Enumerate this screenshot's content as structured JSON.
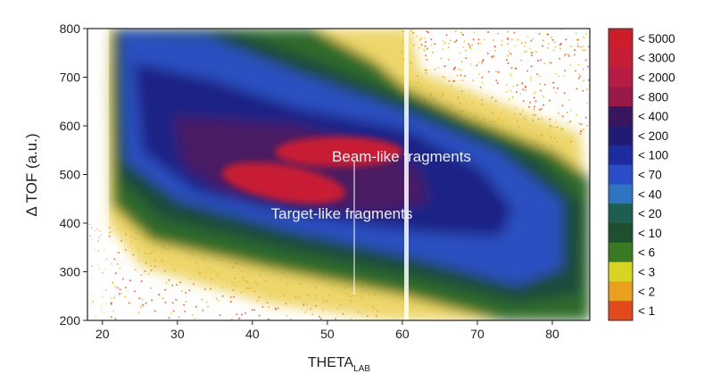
{
  "chart_data": {
    "type": "heatmap",
    "title": "",
    "xlabel": "THETA",
    "xlabel_sub": "LAB",
    "ylabel": "Δ TOF (a.u.)",
    "xlim": [
      18,
      85
    ],
    "ylim": [
      200,
      800
    ],
    "x_ticks": [
      20,
      30,
      40,
      50,
      60,
      70,
      80
    ],
    "y_ticks": [
      200,
      300,
      400,
      500,
      600,
      700,
      800
    ],
    "annotations": [
      {
        "text": "Beam-like fragments",
        "x": 50,
        "y": 515
      },
      {
        "text": "Target-like fragments",
        "x": 45.5,
        "y": 430
      }
    ],
    "regions": [
      {
        "name": "beam-like",
        "x_center": 48,
        "y_center": 540
      },
      {
        "name": "target-like",
        "x_center": 42,
        "y_center": 475
      }
    ],
    "color_scale": {
      "levels": [
        "< 5000",
        "< 3000",
        "< 2000",
        "< 800",
        "< 400",
        "< 200",
        "< 100",
        "< 70",
        "< 40",
        "< 20",
        "< 10",
        "< 6",
        "< 3",
        "< 2",
        "< 1"
      ],
      "colors": [
        "#cc1e2a",
        "#c41e36",
        "#b81c44",
        "#9a1848",
        "#3a1660",
        "#201c74",
        "#1e2aa0",
        "#2a4cc8",
        "#2e74c0",
        "#1e5e52",
        "#1e5030",
        "#3a7a24",
        "#d8d424",
        "#e8a01e",
        "#e24a1e"
      ],
      "legend_position": "right"
    }
  }
}
